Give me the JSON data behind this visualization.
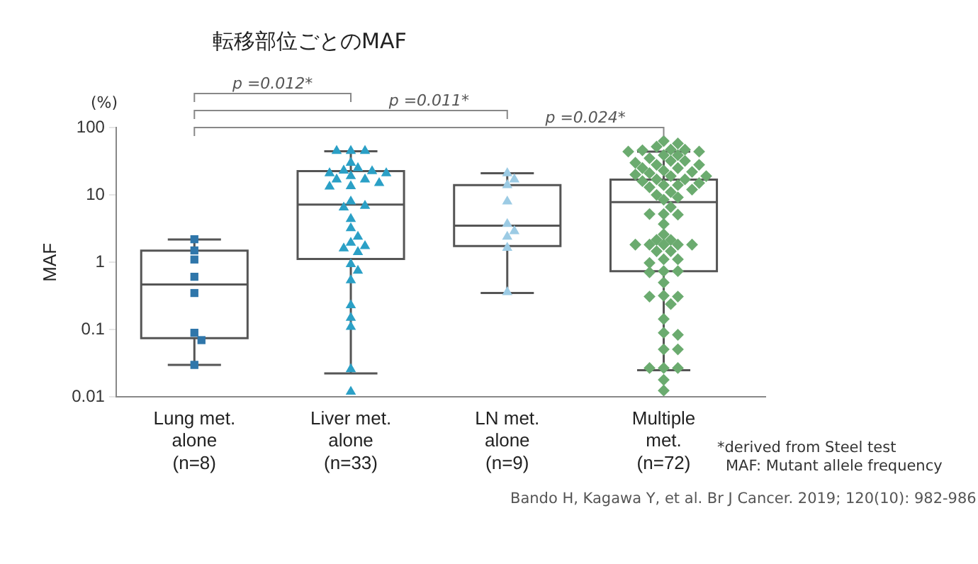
{
  "chart_data": {
    "type": "box",
    "title": "転移部位ごとのMAF",
    "ylabel": "MAF",
    "categories": [
      "Lung met.\nalone\n(n=8)",
      "Liver met.\nalone\n(n=33)",
      "LN met.\nalone\n(n=9)",
      "Multiple\nmet.\n(n=72)"
    ],
    "boxes": [
      {
        "low": 0.03,
        "q1": 0.075,
        "median": 0.47,
        "q3": 1.49,
        "high": 2.18
      },
      {
        "low": 0.0225,
        "q1": 1.12,
        "median": 7.2,
        "q3": 22.5,
        "high": 44.5
      },
      {
        "low": 0.35,
        "q1": 1.74,
        "median": 3.5,
        "q3": 14,
        "high": 21
      },
      {
        "low": 0.025,
        "q1": 0.74,
        "median": 7.8,
        "q3": 16.9,
        "high": 43.8
      }
    ],
    "series": [
      {
        "type": "scatter",
        "marker": "square",
        "color": "#2f76aa",
        "x": [
          "Lung met.\nalone\n(n=8)",
          "Lung met.\nalone\n(n=8)",
          "Lung met.\nalone\n(n=8)",
          "Lung met.\nalone\n(n=8)",
          "Lung met.\nalone\n(n=8)",
          "Lung met.\nalone\n(n=8)",
          "Lung met.\nalone\n(n=8)",
          "Lung met.\nalone\n(n=8)"
        ],
        "values": [
          2.2,
          1.5,
          1.1,
          0.61,
          0.35,
          0.09,
          0.07,
          0.03
        ]
      },
      {
        "type": "scatter",
        "marker": "triangle",
        "color": "#2ba0c6",
        "x": [
          "Liver met.\nalone\n(n=33)",
          "Liver met.\nalone\n(n=33)",
          "Liver met.\nalone\n(n=33)",
          "Liver met.\nalone\n(n=33)",
          "Liver met.\nalone\n(n=33)",
          "Liver met.\nalone\n(n=33)",
          "Liver met.\nalone\n(n=33)",
          "Liver met.\nalone\n(n=33)",
          "Liver met.\nalone\n(n=33)",
          "Liver met.\nalone\n(n=33)",
          "Liver met.\nalone\n(n=33)",
          "Liver met.\nalone\n(n=33)",
          "Liver met.\nalone\n(n=33)",
          "Liver met.\nalone\n(n=33)",
          "Liver met.\nalone\n(n=33)",
          "Liver met.\nalone\n(n=33)",
          "Liver met.\nalone\n(n=33)",
          "Liver met.\nalone\n(n=33)",
          "Liver met.\nalone\n(n=33)",
          "Liver met.\nalone\n(n=33)",
          "Liver met.\nalone\n(n=33)",
          "Liver met.\nalone\n(n=33)",
          "Liver met.\nalone\n(n=33)",
          "Liver met.\nalone\n(n=33)",
          "Liver met.\nalone\n(n=33)",
          "Liver met.\nalone\n(n=33)",
          "Liver met.\nalone\n(n=33)",
          "Liver met.\nalone\n(n=33)",
          "Liver met.\nalone\n(n=33)",
          "Liver met.\nalone\n(n=33)",
          "Liver met.\nalone\n(n=33)",
          "Liver met.\nalone\n(n=33)",
          "Liver met.\nalone\n(n=33)"
        ],
        "values": [
          45,
          45,
          45,
          30,
          25,
          23,
          22.5,
          21,
          21,
          19,
          17,
          17,
          15,
          13.5,
          13.3,
          8,
          6.9,
          6.5,
          4.4,
          3.2,
          2.4,
          1.95,
          1.74,
          1.61,
          1.42,
          0.94,
          0.75,
          0.54,
          0.23,
          0.15,
          0.11,
          0.026,
          0.012
        ]
      },
      {
        "type": "scatter",
        "marker": "triangle",
        "color": "#9ccbe4",
        "x": [
          "LN met.\nalone\n(n=9)",
          "LN met.\nalone\n(n=9)",
          "LN met.\nalone\n(n=9)",
          "LN met.\nalone\n(n=9)",
          "LN met.\nalone\n(n=9)",
          "LN met.\nalone\n(n=9)",
          "LN met.\nalone\n(n=9)",
          "LN met.\nalone\n(n=9)",
          "LN met.\nalone\n(n=9)"
        ],
        "values": [
          21,
          17,
          14,
          8,
          3.7,
          2.9,
          2.4,
          1.64,
          0.36
        ]
      },
      {
        "type": "scatter",
        "marker": "diamond",
        "color": "#6bab6f",
        "x": [
          "Multiple\nmet.\n(n=72)",
          "Multiple\nmet.\n(n=72)",
          "Multiple\nmet.\n(n=72)",
          "Multiple\nmet.\n(n=72)",
          "Multiple\nmet.\n(n=72)",
          "Multiple\nmet.\n(n=72)",
          "Multiple\nmet.\n(n=72)",
          "Multiple\nmet.\n(n=72)",
          "Multiple\nmet.\n(n=72)",
          "Multiple\nmet.\n(n=72)",
          "Multiple\nmet.\n(n=72)",
          "Multiple\nmet.\n(n=72)",
          "Multiple\nmet.\n(n=72)",
          "Multiple\nmet.\n(n=72)",
          "Multiple\nmet.\n(n=72)",
          "Multiple\nmet.\n(n=72)",
          "Multiple\nmet.\n(n=72)",
          "Multiple\nmet.\n(n=72)",
          "Multiple\nmet.\n(n=72)",
          "Multiple\nmet.\n(n=72)",
          "Multiple\nmet.\n(n=72)",
          "Multiple\nmet.\n(n=72)",
          "Multiple\nmet.\n(n=72)",
          "Multiple\nmet.\n(n=72)",
          "Multiple\nmet.\n(n=72)",
          "Multiple\nmet.\n(n=72)",
          "Multiple\nmet.\n(n=72)",
          "Multiple\nmet.\n(n=72)",
          "Multiple\nmet.\n(n=72)",
          "Multiple\nmet.\n(n=72)",
          "Multiple\nmet.\n(n=72)",
          "Multiple\nmet.\n(n=72)",
          "Multiple\nmet.\n(n=72)",
          "Multiple\nmet.\n(n=72)",
          "Multiple\nmet.\n(n=72)",
          "Multiple\nmet.\n(n=72)",
          "Multiple\nmet.\n(n=72)",
          "Multiple\nmet.\n(n=72)",
          "Multiple\nmet.\n(n=72)",
          "Multiple\nmet.\n(n=72)",
          "Multiple\nmet.\n(n=72)",
          "Multiple\nmet.\n(n=72)",
          "Multiple\nmet.\n(n=72)",
          "Multiple\nmet.\n(n=72)",
          "Multiple\nmet.\n(n=72)",
          "Multiple\nmet.\n(n=72)",
          "Multiple\nmet.\n(n=72)",
          "Multiple\nmet.\n(n=72)",
          "Multiple\nmet.\n(n=72)",
          "Multiple\nmet.\n(n=72)",
          "Multiple\nmet.\n(n=72)",
          "Multiple\nmet.\n(n=72)",
          "Multiple\nmet.\n(n=72)",
          "Multiple\nmet.\n(n=72)",
          "Multiple\nmet.\n(n=72)",
          "Multiple\nmet.\n(n=72)",
          "Multiple\nmet.\n(n=72)",
          "Multiple\nmet.\n(n=72)",
          "Multiple\nmet.\n(n=72)",
          "Multiple\nmet.\n(n=72)",
          "Multiple\nmet.\n(n=72)",
          "Multiple\nmet.\n(n=72)",
          "Multiple\nmet.\n(n=72)",
          "Multiple\nmet.\n(n=72)",
          "Multiple\nmet.\n(n=72)",
          "Multiple\nmet.\n(n=72)",
          "Multiple\nmet.\n(n=72)",
          "Multiple\nmet.\n(n=72)",
          "Multiple\nmet.\n(n=72)",
          "Multiple\nmet.\n(n=72)",
          "Multiple\nmet.\n(n=72)",
          "Multiple\nmet.\n(n=72)"
        ],
        "values": [
          63,
          58,
          52,
          47,
          47,
          46,
          44,
          44,
          39,
          39,
          35,
          32,
          32,
          30,
          28,
          28,
          25,
          25,
          23,
          22,
          21,
          20,
          19,
          19,
          17,
          17,
          16,
          15,
          14,
          14,
          13,
          12,
          11,
          10,
          9.2,
          8.5,
          6.6,
          5.2,
          5.1,
          5.2,
          3.7,
          2.6,
          2.15,
          2.15,
          1.83,
          1.83,
          1.83,
          1.83,
          1.83,
          1.46,
          1.46,
          1.11,
          1.11,
          0.98,
          0.74,
          0.74,
          0.71,
          0.5,
          0.32,
          0.31,
          0.31,
          0.24,
          0.144,
          0.09,
          0.084,
          0.051,
          0.051,
          0.027,
          0.027,
          0.027,
          0.018,
          0.0125
        ]
      }
    ],
    "log": "y",
    "ylim": [
      0.01,
      100
    ],
    "yticks": [
      {
        "value": 0.01,
        "label": "0.01"
      },
      {
        "value": 0.1,
        "label": "0.1"
      },
      {
        "value": 1,
        "label": "1"
      },
      {
        "value": 10,
        "label": "10"
      },
      {
        "value": 100,
        "label": "100"
      }
    ],
    "grid": false,
    "annotations": [
      "p =0.012*",
      "p =0.011*",
      "p =0.024*",
      "(%)",
      "*derived from Steel test",
      "MAF: Mutant allele frequency",
      "Bando H, Kagawa Y, et al. Br J Cancer. 2019; 120(10): 982-986"
    ]
  }
}
